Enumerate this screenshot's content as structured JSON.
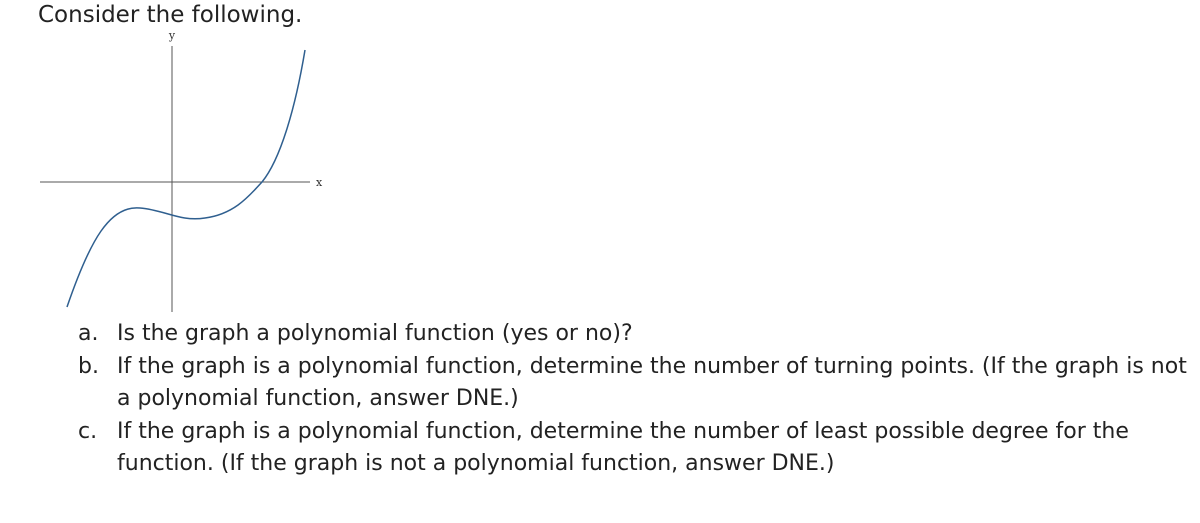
{
  "header": {
    "title": "Consider the following."
  },
  "graph": {
    "y_label": "y",
    "x_label": "x"
  },
  "questions": [
    {
      "label": "a.",
      "text": "Is the graph a polynomial function (yes or no)?"
    },
    {
      "label": "b.",
      "text": "If the graph is a polynomial function, determine the number of turning points. (If the graph is not a polynomial function, answer DNE.)"
    },
    {
      "label": "c.",
      "text": "If the graph is a polynomial function, determine the number of least possible degree for the function. (If the graph is not a polynomial function, answer DNE.)"
    }
  ]
}
